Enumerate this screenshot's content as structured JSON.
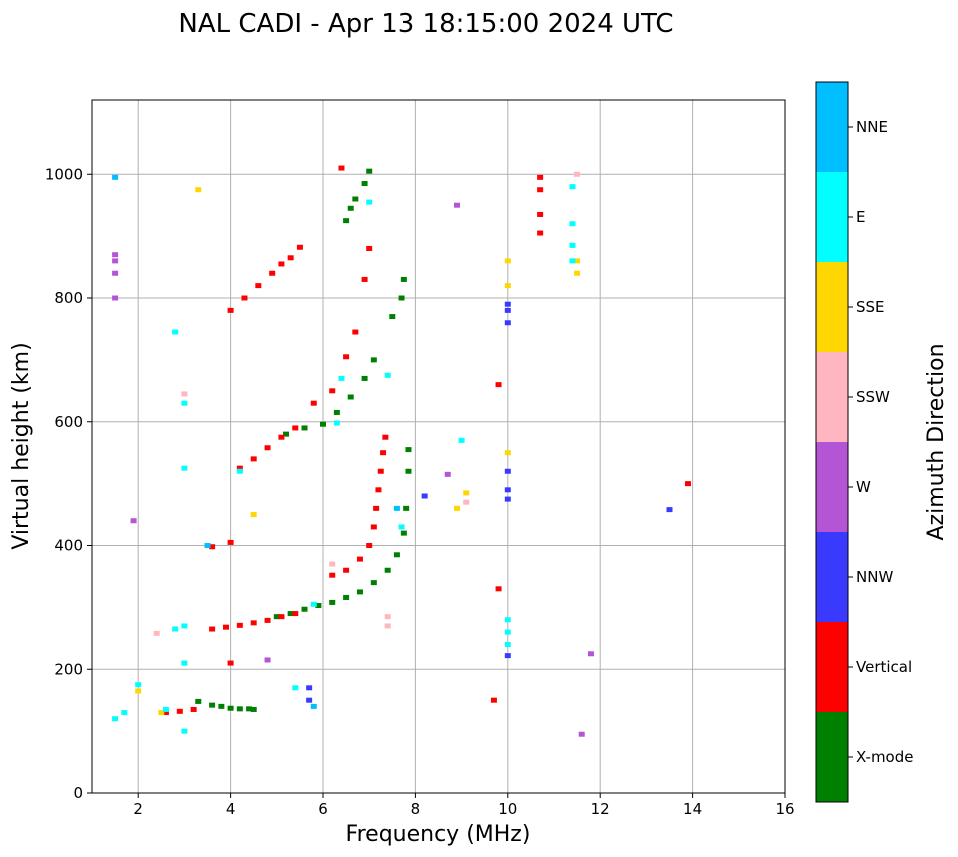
{
  "chart_data": {
    "type": "scatter",
    "title": "NAL CADI - Apr 13 18:15:00 2024 UTC",
    "xlabel": "Frequency (MHz)",
    "ylabel": "Virtual height (km)",
    "xlim": [
      1,
      16
    ],
    "ylim": [
      0,
      1120
    ],
    "xticks": [
      2,
      4,
      6,
      8,
      10,
      12,
      14,
      16
    ],
    "yticks": [
      0,
      200,
      400,
      600,
      800,
      1000
    ],
    "grid": true,
    "colorbar": {
      "title": "Azimuth Direction",
      "categories": [
        {
          "name": "X-mode",
          "color": "#008000"
        },
        {
          "name": "Vertical",
          "color": "#ff0000"
        },
        {
          "name": "NNW",
          "color": "#3a3aff"
        },
        {
          "name": "W",
          "color": "#b455d6"
        },
        {
          "name": "SSW",
          "color": "#ffb6c1"
        },
        {
          "name": "SSE",
          "color": "#ffd700"
        },
        {
          "name": "E",
          "color": "#00ffff"
        },
        {
          "name": "NNE",
          "color": "#00bfff"
        }
      ]
    },
    "series": [
      {
        "name": "X-mode",
        "points": [
          [
            3.3,
            148
          ],
          [
            3.6,
            142
          ],
          [
            3.8,
            140
          ],
          [
            4.0,
            137
          ],
          [
            4.2,
            136
          ],
          [
            4.4,
            136
          ],
          [
            4.5,
            135
          ],
          [
            5.0,
            285
          ],
          [
            5.3,
            290
          ],
          [
            5.6,
            297
          ],
          [
            5.9,
            303
          ],
          [
            6.2,
            308
          ],
          [
            6.5,
            316
          ],
          [
            6.8,
            325
          ],
          [
            7.1,
            340
          ],
          [
            7.4,
            360
          ],
          [
            7.6,
            385
          ],
          [
            7.75,
            420
          ],
          [
            7.8,
            460
          ],
          [
            7.85,
            520
          ],
          [
            7.85,
            555
          ],
          [
            5.2,
            580
          ],
          [
            5.6,
            590
          ],
          [
            6.0,
            596
          ],
          [
            6.3,
            615
          ],
          [
            6.6,
            640
          ],
          [
            6.9,
            670
          ],
          [
            7.1,
            700
          ],
          [
            6.5,
            925
          ],
          [
            6.6,
            945
          ],
          [
            6.7,
            960
          ],
          [
            6.9,
            985
          ],
          [
            7.0,
            1005
          ],
          [
            7.5,
            770
          ],
          [
            7.7,
            800
          ],
          [
            7.75,
            830
          ]
        ]
      },
      {
        "name": "Vertical",
        "points": [
          [
            2.6,
            130
          ],
          [
            2.9,
            132
          ],
          [
            3.2,
            135
          ],
          [
            3.6,
            265
          ],
          [
            3.9,
            268
          ],
          [
            4.2,
            271
          ],
          [
            4.5,
            275
          ],
          [
            4.8,
            279
          ],
          [
            5.1,
            285
          ],
          [
            5.4,
            290
          ],
          [
            6.2,
            352
          ],
          [
            6.5,
            360
          ],
          [
            6.8,
            378
          ],
          [
            7.0,
            400
          ],
          [
            7.1,
            430
          ],
          [
            7.15,
            460
          ],
          [
            7.2,
            490
          ],
          [
            7.25,
            520
          ],
          [
            7.3,
            550
          ],
          [
            7.35,
            575
          ],
          [
            3.6,
            398
          ],
          [
            4.0,
            405
          ],
          [
            4.2,
            525
          ],
          [
            4.5,
            540
          ],
          [
            4.8,
            558
          ],
          [
            5.1,
            575
          ],
          [
            5.4,
            590
          ],
          [
            5.8,
            630
          ],
          [
            6.2,
            650
          ],
          [
            6.5,
            705
          ],
          [
            6.7,
            745
          ],
          [
            6.4,
            1010
          ],
          [
            6.9,
            830
          ],
          [
            7.0,
            880
          ],
          [
            4.0,
            780
          ],
          [
            4.3,
            800
          ],
          [
            4.6,
            820
          ],
          [
            4.9,
            840
          ],
          [
            5.1,
            855
          ],
          [
            5.3,
            865
          ],
          [
            5.5,
            882
          ],
          [
            4.0,
            210
          ],
          [
            9.7,
            150
          ],
          [
            9.8,
            330
          ],
          [
            9.8,
            660
          ],
          [
            10.7,
            905
          ],
          [
            10.7,
            935
          ],
          [
            10.7,
            975
          ],
          [
            10.7,
            995
          ],
          [
            13.9,
            500
          ]
        ]
      },
      {
        "name": "NNW",
        "points": [
          [
            10.0,
            222
          ],
          [
            10.0,
            475
          ],
          [
            10.0,
            490
          ],
          [
            10.0,
            520
          ],
          [
            10.0,
            760
          ],
          [
            10.0,
            780
          ],
          [
            10.0,
            790
          ],
          [
            8.2,
            480
          ],
          [
            13.5,
            458
          ],
          [
            5.7,
            170
          ],
          [
            5.7,
            150
          ]
        ]
      },
      {
        "name": "W",
        "points": [
          [
            1.5,
            800
          ],
          [
            1.5,
            840
          ],
          [
            1.5,
            860
          ],
          [
            1.5,
            870
          ],
          [
            1.9,
            440
          ],
          [
            8.9,
            950
          ],
          [
            8.7,
            515
          ],
          [
            11.8,
            225
          ],
          [
            11.6,
            95
          ],
          [
            4.8,
            215
          ]
        ]
      },
      {
        "name": "SSW",
        "points": [
          [
            2.4,
            258
          ],
          [
            3.0,
            645
          ],
          [
            6.2,
            370
          ],
          [
            7.4,
            270
          ],
          [
            7.4,
            285
          ],
          [
            11.5,
            1000
          ],
          [
            9.1,
            470
          ]
        ]
      },
      {
        "name": "SSE",
        "points": [
          [
            2.5,
            130
          ],
          [
            3.3,
            975
          ],
          [
            4.5,
            450
          ],
          [
            9.1,
            485
          ],
          [
            10.0,
            550
          ],
          [
            10.0,
            820
          ],
          [
            10.0,
            860
          ],
          [
            11.5,
            840
          ],
          [
            11.5,
            860
          ],
          [
            8.9,
            460
          ],
          [
            2.0,
            165
          ]
        ]
      },
      {
        "name": "E",
        "points": [
          [
            1.5,
            120
          ],
          [
            1.7,
            130
          ],
          [
            2.0,
            175
          ],
          [
            2.6,
            135
          ],
          [
            2.8,
            265
          ],
          [
            3.0,
            270
          ],
          [
            4.2,
            520
          ],
          [
            5.8,
            305
          ],
          [
            6.3,
            598
          ],
          [
            6.4,
            670
          ],
          [
            7.0,
            955
          ],
          [
            7.4,
            675
          ],
          [
            9.0,
            570
          ],
          [
            10.0,
            240
          ],
          [
            10.0,
            260
          ],
          [
            10.0,
            280
          ],
          [
            11.4,
            920
          ],
          [
            11.4,
            980
          ],
          [
            11.4,
            885
          ],
          [
            11.4,
            860
          ],
          [
            3.0,
            100
          ],
          [
            3.0,
            210
          ],
          [
            2.8,
            745
          ],
          [
            3.0,
            525
          ],
          [
            3.0,
            630
          ],
          [
            5.4,
            170
          ],
          [
            7.7,
            430
          ]
        ]
      },
      {
        "name": "NNE",
        "points": [
          [
            1.5,
            995
          ],
          [
            3.5,
            400
          ],
          [
            5.8,
            140
          ],
          [
            7.6,
            460
          ]
        ]
      }
    ]
  }
}
